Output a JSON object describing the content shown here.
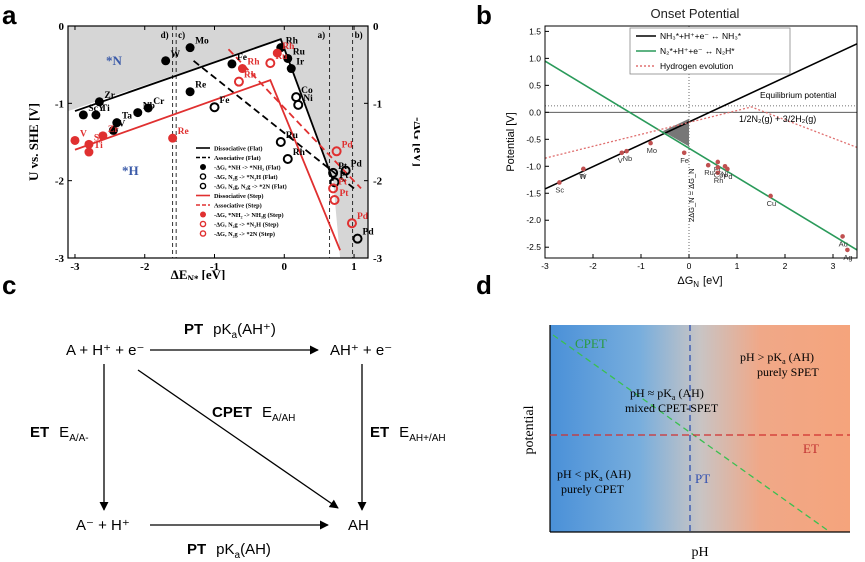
{
  "panels": {
    "a": "a",
    "b": "b",
    "c": "c",
    "d": "d"
  },
  "chart_data": [
    {
      "panel": "a",
      "type": "scatter",
      "xlabel": "ΔE",
      "xlabel_sub": "N*",
      "xlabel_unit": "[eV]",
      "ylabel": "U vs. SHE [V]",
      "ylabel_right": "-ΔG [eV]",
      "xlim": [
        -3.1,
        1.2
      ],
      "ylim": [
        -3,
        0
      ],
      "xticks": [
        "-3",
        "-2",
        "-1",
        "0",
        "1"
      ],
      "yticks_left": [
        "0",
        "-1",
        "-2",
        "-3"
      ],
      "yticks_right": [
        "0",
        "-1",
        "-2",
        "-3"
      ],
      "region_labels": {
        "n": "*N",
        "h": "*H"
      },
      "vlines": [
        {
          "x": -1.6,
          "label": "d)"
        },
        {
          "x": -1.55,
          "label": "c)"
        },
        {
          "x": 0.65,
          "label": "a)"
        },
        {
          "x": 0.98,
          "label": "b)"
        }
      ],
      "flat_points": [
        {
          "label": "Mo",
          "x": -1.35,
          "y": -0.28
        },
        {
          "label": "W",
          "x": -1.7,
          "y": -0.45
        },
        {
          "label": "Fe",
          "x": -0.75,
          "y": -0.49
        },
        {
          "label": "Rh",
          "x": -0.05,
          "y": -0.28
        },
        {
          "label": "Ru",
          "x": 0.05,
          "y": -0.42
        },
        {
          "label": "Ir",
          "x": 0.1,
          "y": -0.55
        },
        {
          "label": "Re",
          "x": -1.35,
          "y": -0.85
        },
        {
          "label": "Zr",
          "x": -2.65,
          "y": -0.98
        },
        {
          "label": "Cr",
          "x": -1.95,
          "y": -1.06
        },
        {
          "label": "Nb",
          "x": -2.1,
          "y": -1.12
        },
        {
          "label": "Ta",
          "x": -2.4,
          "y": -1.25
        },
        {
          "label": "ScY",
          "x": -2.88,
          "y": -1.15
        },
        {
          "label": "Ti",
          "x": -2.7,
          "y": -1.15
        },
        {
          "label": "V",
          "x": -2.45,
          "y": -1.35
        }
      ],
      "flat_rings": [
        {
          "label": "Fe",
          "x": -1.0,
          "y": -1.05
        },
        {
          "label": "Co",
          "x": 0.17,
          "y": -0.92
        },
        {
          "label": "Ni",
          "x": 0.2,
          "y": -1.02
        },
        {
          "label": "Ru",
          "x": -0.05,
          "y": -1.5
        },
        {
          "label": "Rh",
          "x": 0.05,
          "y": -1.72
        },
        {
          "label": "Pd",
          "x": 0.88,
          "y": -1.87
        },
        {
          "label": "Pt",
          "x": 0.72,
          "y": -2.02
        },
        {
          "label": "Pt",
          "x": 0.7,
          "y": -1.9
        },
        {
          "label": "Pd",
          "x": 1.05,
          "y": -2.75
        }
      ],
      "step_points": [
        {
          "label": "Rh",
          "x": -0.6,
          "y": -0.55
        },
        {
          "label": "Rh",
          "x": -0.1,
          "y": -0.35
        },
        {
          "label": "Re",
          "x": -1.6,
          "y": -1.45
        },
        {
          "label": "V",
          "x": -3.0,
          "y": -1.48
        },
        {
          "label": "Zr",
          "x": -2.6,
          "y": -1.42
        },
        {
          "label": "Ti",
          "x": -2.8,
          "y": -1.63
        },
        {
          "label": "Sc",
          "x": -2.8,
          "y": -1.53
        }
      ],
      "step_rings": [
        {
          "label": "Rh",
          "x": -0.65,
          "y": -0.72
        },
        {
          "label": "Ru",
          "x": -0.2,
          "y": -0.48
        },
        {
          "label": "Pd",
          "x": 0.75,
          "y": -1.62
        },
        {
          "label": "Pt",
          "x": 0.7,
          "y": -2.1
        },
        {
          "label": "Pt",
          "x": 0.72,
          "y": -2.25
        },
        {
          "label": "Pd",
          "x": 0.97,
          "y": -2.55
        }
      ],
      "lines": [
        {
          "name": "Dissociative (Flat)",
          "color": "#000000",
          "dash": "solid",
          "points": [
            [
              -3.0,
              -1.1
            ],
            [
              -0.05,
              -0.17
            ],
            [
              0.7,
              -2.0
            ]
          ]
        },
        {
          "name": "Associative (Flat)",
          "color": "#000000",
          "dash": "dashed",
          "points": [
            [
              -1.3,
              -0.45
            ],
            [
              1.0,
              -2.1
            ]
          ]
        },
        {
          "name": "Dissociative (Step)",
          "color": "#e03030",
          "dash": "solid",
          "points": [
            [
              -3.0,
              -1.6
            ],
            [
              -0.2,
              -0.7
            ],
            [
              0.8,
              -2.9
            ]
          ]
        },
        {
          "name": "Associative (Step)",
          "color": "#e03030",
          "dash": "dashed",
          "points": [
            [
              -0.8,
              -0.3
            ],
            [
              1.1,
              -2.1
            ]
          ]
        }
      ],
      "legend": [
        {
          "kind": "line",
          "dash": "solid",
          "color": "#000000",
          "text": "Dissociative (Flat)"
        },
        {
          "kind": "line",
          "dash": "dashed",
          "color": "#000000",
          "text": "Associative (Flat)"
        },
        {
          "kind": "dot",
          "color": "#000000",
          "text": "-ΔG, *NH -> *NH₂ (Flat)"
        },
        {
          "kind": "ring",
          "color": "#000000",
          "text": "-ΔG, N₂g -> *N₂H (Flat)"
        },
        {
          "kind": "ring",
          "color": "#000000",
          "text": "-ΔG, N₂g, N₂g -> *2N (Flat)"
        },
        {
          "kind": "line",
          "dash": "solid",
          "color": "#e03030",
          "text": "Dissociative (Step)"
        },
        {
          "kind": "line",
          "dash": "dashed",
          "color": "#e03030",
          "text": "Associative (Step)"
        },
        {
          "kind": "dot",
          "color": "#e03030",
          "text": "-ΔG, *NH₂ -> NH₃g (Step)"
        },
        {
          "kind": "ring",
          "color": "#e03030",
          "text": "-ΔG, N₂g -> *N₂H (Step)"
        },
        {
          "kind": "ring",
          "color": "#e03030",
          "text": "-ΔG, N₂g -> *2N (Step)"
        }
      ]
    },
    {
      "panel": "b",
      "type": "line",
      "title": "Onset Potential",
      "xlabel": "ΔG",
      "xlabel_sub": "N",
      "xlabel_unit": "[eV]",
      "ylabel": "Potential  [V]",
      "xlim": [
        -3,
        3.5
      ],
      "ylim": [
        -2.7,
        1.6
      ],
      "xticks": [
        "-3",
        "-2",
        "-1",
        "0",
        "1",
        "2",
        "3"
      ],
      "yticks": [
        "1.5",
        "1.0",
        "0.5",
        "0.0",
        "-0.5",
        "-1.0",
        "-1.5",
        "-2.0",
        "-2.5"
      ],
      "series": [
        {
          "name": "NH₃*+H⁺+e⁻ ↔ NH₃*",
          "color": "#000000",
          "points": [
            [
              -3,
              -1.42
            ],
            [
              3.5,
              1.27
            ]
          ]
        },
        {
          "name": "N₂*+H⁺+e⁻ ↔ N₂H*",
          "color": "#2a9a5a",
          "points": [
            [
              -3,
              0.95
            ],
            [
              3.5,
              -2.55
            ]
          ]
        },
        {
          "name": "Hydrogen evolution",
          "color": "#e07070",
          "points": [
            [
              -3,
              -0.85
            ],
            [
              1.3,
              0.1
            ],
            [
              3.5,
              -0.65
            ]
          ]
        }
      ],
      "equilibrium_label": "Equilibrium potential",
      "reaction_label": "1/2N₂(g) + 3/2H₂(g)",
      "vline_label": "2ΔG_N = ΔG_N",
      "metals": [
        {
          "label": "Sc",
          "x": -2.7,
          "y": -1.3
        },
        {
          "label": "Ti",
          "x": -2.2,
          "y": -1.05
        },
        {
          "label": "W",
          "x": -2.2,
          "y": -1.05
        },
        {
          "label": "V",
          "x": -1.4,
          "y": -0.75
        },
        {
          "label": "Nb",
          "x": -1.3,
          "y": -0.72
        },
        {
          "label": "Mo",
          "x": -0.8,
          "y": -0.57
        },
        {
          "label": "Fe",
          "x": -0.1,
          "y": -0.75
        },
        {
          "label": "Ru",
          "x": 0.4,
          "y": -0.98
        },
        {
          "label": "Pt",
          "x": 0.6,
          "y": -0.92
        },
        {
          "label": "Rh",
          "x": 0.6,
          "y": -1.12
        },
        {
          "label": "Co",
          "x": 0.6,
          "y": -1.02
        },
        {
          "label": "Ni",
          "x": 0.75,
          "y": -1.0
        },
        {
          "label": "Pd",
          "x": 0.8,
          "y": -1.05
        },
        {
          "label": "Cu",
          "x": 1.7,
          "y": -1.55
        },
        {
          "label": "Au",
          "x": 3.2,
          "y": -2.3
        },
        {
          "label": "Ag",
          "x": 3.3,
          "y": -2.55
        }
      ]
    },
    {
      "panel": "d",
      "type": "line",
      "xlabel": "pH",
      "ylabel": "potential",
      "labels": {
        "cpet": "CPET",
        "et": "ET",
        "pt": "PT",
        "left_line1": "pH < pK",
        "left_line1_sub": "a",
        "left_line1_tail": " (AH)",
        "left_line2": "purely CPET",
        "mid_line1": "pH ≈ pK",
        "mid_line1_sub": "a",
        "mid_line1_tail": " (AH)",
        "mid_line2": "mixed CPET-SPET",
        "right_line1": "pH > pK",
        "right_line1_sub": "a",
        "right_line1_tail": " (AH)",
        "right_line2": "purely SPET"
      }
    }
  ],
  "scheme": {
    "top_left": "A + H⁺ + e⁻",
    "top_right": "AH⁺ + e⁻",
    "bottom_left": "A⁻ + H⁺",
    "bottom_right": "AH",
    "pt_top_bold": "PT",
    "pt_top_rest": "pK",
    "pt_top_sub": "a",
    "pt_top_tail": "(AH⁺)",
    "pt_bottom_bold": "PT",
    "pt_bottom_rest": "pK",
    "pt_bottom_sub": "a",
    "pt_bottom_tail": "(AH)",
    "et_left_bold": "ET",
    "et_left_rest": "E",
    "et_left_sub": "A/A-",
    "et_right_bold": "ET",
    "et_right_rest": "E",
    "et_right_sub": "AH+/AH",
    "cpet_bold": "CPET",
    "cpet_rest": "E",
    "cpet_sub": "A/AH"
  }
}
